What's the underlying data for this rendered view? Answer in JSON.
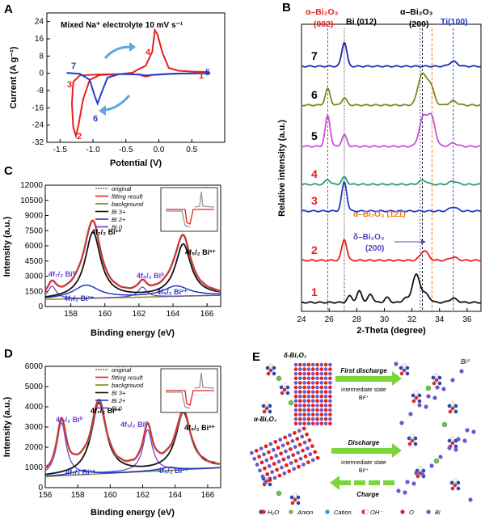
{
  "panels": {
    "A": "A",
    "B": "B",
    "C": "C",
    "D": "D",
    "E": "E"
  },
  "chart_data": [
    {
      "id": "A",
      "type": "line",
      "title": "Mixed Na⁺ electrolyte 10 mV s⁻¹",
      "xlabel": "Potential (V)",
      "ylabel": "Current (A g⁻¹)",
      "xlim": [
        -1.7,
        1.0
      ],
      "ylim": [
        -32,
        28
      ],
      "xticks": [
        "-1.5",
        "-1.0",
        "-0.5",
        "0.0",
        "0.5"
      ],
      "yticks": [
        "24",
        "16",
        "8",
        "0",
        "-8",
        "-16",
        "-24",
        "-32"
      ],
      "series": [
        {
          "name": "CV red",
          "color": "#e8201c",
          "points": [
            [
              0.75,
              0.6
            ],
            [
              0.5,
              0.8
            ],
            [
              0.3,
              1.2
            ],
            [
              0.15,
              2.5
            ],
            [
              0.05,
              10
            ],
            [
              -0.02,
              18
            ],
            [
              -0.06,
              20
            ],
            [
              -0.1,
              10
            ],
            [
              -0.2,
              3.5
            ],
            [
              -0.3,
              2
            ],
            [
              -0.4,
              0.3
            ],
            [
              -0.6,
              -0.4
            ],
            [
              -0.9,
              -0.8
            ],
            [
              -1.05,
              -3
            ],
            [
              -1.15,
              -12
            ],
            [
              -1.22,
              -24
            ],
            [
              -1.26,
              -29
            ],
            [
              -1.3,
              -25
            ],
            [
              -1.32,
              -14
            ],
            [
              -1.3,
              -4
            ],
            [
              -1.2,
              -1
            ],
            [
              -0.9,
              -0.5
            ],
            [
              -0.5,
              -0.3
            ],
            [
              -0.3,
              -0.6
            ],
            [
              -0.2,
              -1.5
            ],
            [
              -0.1,
              -0.8
            ],
            [
              0.2,
              -0.2
            ],
            [
              0.5,
              0.0
            ],
            [
              0.75,
              0.3
            ]
          ]
        },
        {
          "name": "CV blue",
          "color": "#1e3fcf",
          "points": [
            [
              -1.4,
              0.2
            ],
            [
              -1.2,
              -0.2
            ],
            [
              -1.05,
              -3
            ],
            [
              -0.98,
              -10
            ],
            [
              -0.93,
              -14
            ],
            [
              -0.87,
              -9
            ],
            [
              -0.78,
              -2
            ],
            [
              -0.6,
              -0.3
            ],
            [
              -0.3,
              -0.5
            ],
            [
              -0.2,
              -1
            ],
            [
              0.0,
              -0.5
            ],
            [
              0.3,
              -0.1
            ],
            [
              0.7,
              0.0
            ],
            [
              0.78,
              0.1
            ]
          ]
        }
      ],
      "annotations": [
        "1",
        "2",
        "3",
        "4",
        "5",
        "6",
        "7"
      ]
    },
    {
      "id": "B",
      "type": "line",
      "xlabel": "2-Theta (degree)",
      "ylabel": "Relative intensity (a.u.)",
      "xlim": [
        24,
        37
      ],
      "xticks": [
        "24",
        "26",
        "28",
        "30",
        "32",
        "34",
        "36"
      ],
      "top_labels": {
        "alpha002": "α–Bi₂O₃",
        "alpha002_hkl": "(002)",
        "bi012": "Bi (012)",
        "alpha200": "α–Bi₂O₃",
        "alpha200_hkl": "(200)",
        "ti100": "Ti(100)"
      },
      "inline_labels": {
        "alpha121": "α–Bi₂O₃ (̄121)",
        "delta": "δ–Bi₂O₃",
        "delta_hkl": "(200)"
      },
      "series": [
        {
          "name": "7",
          "color": "#1b2aa6",
          "peaks": [
            [
              27.1,
              30
            ],
            [
              35.0,
              6
            ]
          ]
        },
        {
          "name": "6",
          "color": "#7e8a1b",
          "peaks": [
            [
              25.9,
              20
            ],
            [
              27.1,
              9
            ],
            [
              32.7,
              36
            ],
            [
              33.3,
              26
            ],
            [
              35.0,
              5
            ]
          ]
        },
        {
          "name": "5",
          "color": "#c653d6",
          "peaks": [
            [
              25.9,
              38
            ],
            [
              27.1,
              14
            ],
            [
              32.8,
              34
            ],
            [
              33.4,
              36
            ],
            [
              35.0,
              4
            ]
          ]
        },
        {
          "name": "4",
          "color": "#2c9a78",
          "peaks": [
            [
              25.9,
              6
            ],
            [
              27.1,
              9
            ],
            [
              32.8,
              5
            ],
            [
              35.0,
              4
            ]
          ]
        },
        {
          "name": "3",
          "color": "#2339c4",
          "peaks": [
            [
              27.1,
              36
            ],
            [
              35.0,
              5
            ]
          ]
        },
        {
          "name": "2",
          "color": "#e8201c",
          "peaks": [
            [
              27.1,
              26
            ],
            [
              32.9,
              12
            ],
            [
              35.0,
              4
            ]
          ]
        },
        {
          "name": "1",
          "color": "#111111",
          "peaks": [
            [
              27.5,
              8
            ],
            [
              28.2,
              14
            ],
            [
              29.0,
              10
            ],
            [
              30.2,
              6
            ],
            [
              31.5,
              5
            ],
            [
              32.3,
              34
            ],
            [
              33.0,
              10
            ],
            [
              35.0,
              5
            ]
          ]
        }
      ]
    },
    {
      "id": "C",
      "type": "line",
      "xlabel": "Binding energy (eV)",
      "ylabel": "Intensity (a.u.)",
      "xlim": [
        156.5,
        166.8
      ],
      "ylim": [
        0,
        12000
      ],
      "xticks": [
        "158",
        "160",
        "162",
        "164",
        "166"
      ],
      "yticks": [
        "0",
        "1500",
        "3000",
        "4500",
        "6000",
        "7500",
        "9000",
        "10500",
        "12000"
      ],
      "legend": [
        "original",
        "fitting result",
        "background",
        "Bi 3+",
        "Bi 2+",
        "Bi 0"
      ],
      "peak_labels": [
        "4f₇/₂ Bi⁰",
        "4f₇/₂ Bi²⁺",
        "4f₇/₂ Bi³⁺",
        "4f₅/₂ Bi⁰",
        "4f₅/₂ Bi²⁺",
        "4f₅/₂ Bi³⁺"
      ],
      "components": {
        "bi3": [
          [
            159.3,
            6500,
            0.55
          ],
          [
            164.6,
            5100,
            0.55
          ]
        ],
        "bi2": [
          [
            158.9,
            1300,
            0.9
          ],
          [
            164.2,
            1000,
            0.9
          ]
        ],
        "bi0": [
          [
            156.9,
            1300,
            0.3
          ],
          [
            162.2,
            1000,
            0.3
          ]
        ],
        "background": 700
      }
    },
    {
      "id": "D",
      "type": "line",
      "xlabel": "Binding energy (eV)",
      "ylabel": "Intensity (a.u.)",
      "xlim": [
        156.0,
        166.8
      ],
      "ylim": [
        0,
        6000
      ],
      "xticks": [
        "156",
        "158",
        "160",
        "162",
        "164",
        "166"
      ],
      "yticks": [
        "0",
        "1000",
        "2000",
        "3000",
        "4000",
        "5000",
        "6000"
      ],
      "legend": [
        "original",
        "fitting result",
        "background",
        "Bi 3+",
        "Bi 2+",
        "Bi 0"
      ],
      "peak_labels": [
        "4f₇/₂ Bi⁰",
        "4f₇/₂ Bi²⁺",
        "4f₇/₂ Bi³⁺",
        "4f₅/₂ Bi⁰",
        "4f₅/₂ Bi²⁺",
        "4f₅/₂ Bi³⁺"
      ],
      "components": {
        "bi3": [
          [
            159.3,
            3500,
            0.55
          ],
          [
            164.5,
            2800,
            0.55
          ]
        ],
        "bi2": [
          [
            158.2,
            200,
            0.7
          ],
          [
            163.6,
            150,
            0.7
          ]
        ],
        "bi0": [
          [
            157.0,
            2600,
            0.35
          ],
          [
            162.3,
            2050,
            0.35
          ]
        ],
        "background": 550
      }
    }
  ],
  "diagram": {
    "delta_label": "δ-Bi₂O₃",
    "alpha_label": "α-Bi₂O₃",
    "bi0_label": "Bi⁰",
    "first_discharge": "First discharge",
    "discharge": "Discharge",
    "charge": "Charge",
    "intermediate1": "intermediate state",
    "intermediate1_sub": "Bi²⁺",
    "intermediate2": "intermediate state",
    "intermediate2_sub": "Bi²⁺",
    "legend": [
      "H₂O",
      "Anion",
      "Cation",
      "OH⁻",
      "O",
      "Bi"
    ]
  }
}
